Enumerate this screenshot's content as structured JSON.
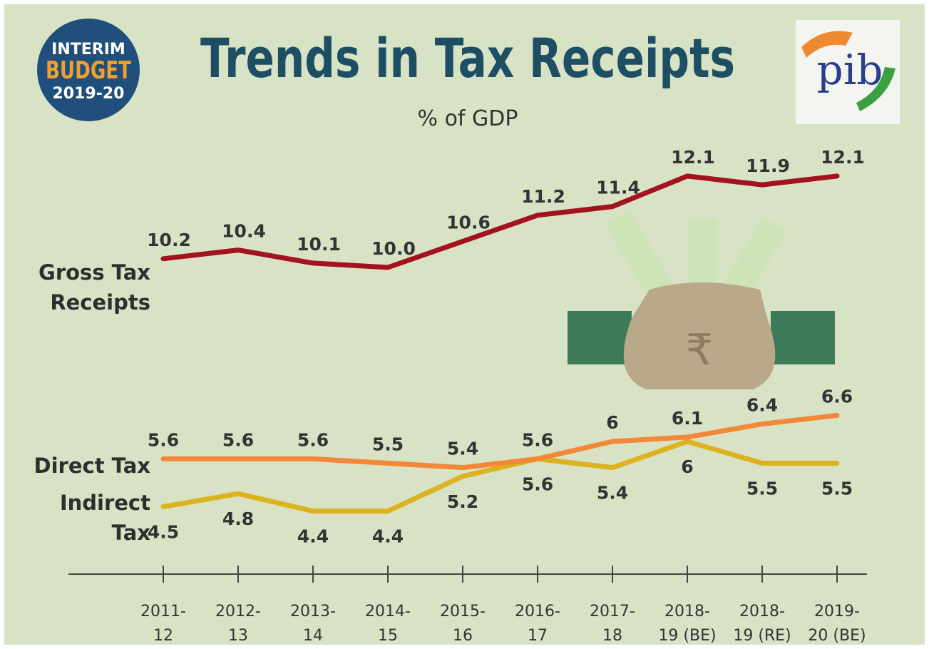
{
  "badge": {
    "lines": [
      "INTERIM",
      "BUDGET",
      "2019-20"
    ]
  },
  "logo": {
    "text": "pib"
  },
  "chart_data": {
    "type": "line",
    "title": "Trends in Tax Receipts",
    "subtitle": "% of GDP",
    "categories": [
      [
        "2011-",
        "12"
      ],
      [
        "2012-",
        "13"
      ],
      [
        "2013-",
        "14"
      ],
      [
        "2014-",
        "15"
      ],
      [
        "2015-",
        "16"
      ],
      [
        "2016-",
        "17"
      ],
      [
        "2017-",
        "18"
      ],
      [
        "2018-",
        "19 (BE)"
      ],
      [
        "2018-",
        "19 (RE)"
      ],
      [
        "2019-",
        "20 (BE)"
      ]
    ],
    "ylim": [
      3,
      13
    ],
    "series": [
      {
        "name": "Gross Tax Receipts",
        "color": "#a3121f",
        "values": [
          10.2,
          10.4,
          10.1,
          10.0,
          10.6,
          11.2,
          11.4,
          12.1,
          11.9,
          12.1
        ],
        "value_labels": [
          "10.2",
          "10.4",
          "10.1",
          "10.0",
          "10.6",
          "11.2",
          "11.4",
          "12.1",
          "11.9",
          "12.1"
        ]
      },
      {
        "name": "Direct Tax",
        "color": "#f4883a",
        "values": [
          5.6,
          5.6,
          5.6,
          5.5,
          5.4,
          5.6,
          6.0,
          6.1,
          6.4,
          6.6
        ]
      },
      {
        "name": "Indirect Tax",
        "color": "#dcb21e",
        "values": [
          4.5,
          4.8,
          4.4,
          4.4,
          5.2,
          5.6,
          5.4,
          6.0,
          5.5,
          5.5
        ]
      }
    ]
  }
}
